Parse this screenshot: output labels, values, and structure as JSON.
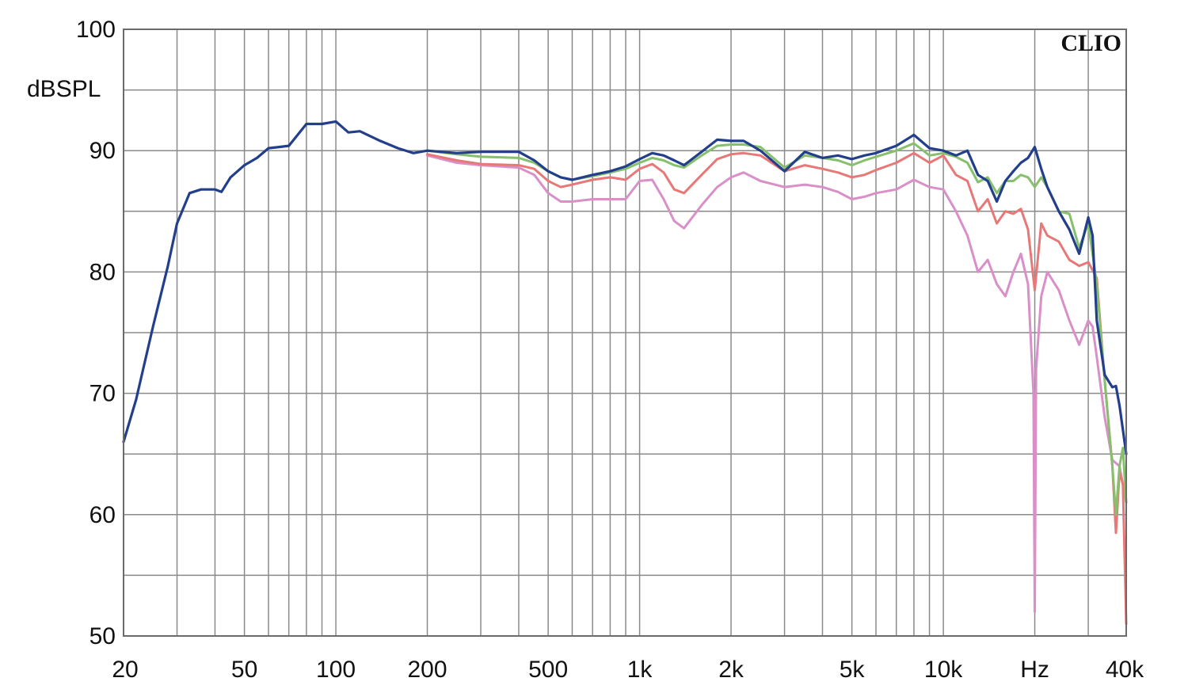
{
  "chart_data": {
    "type": "line",
    "brand": "CLIO",
    "ylabel": "dBSPL",
    "xunit_label": "Hz",
    "xscale": "log",
    "xlim": [
      20,
      40000
    ],
    "ylim": [
      50,
      100
    ],
    "grid": true,
    "y_ticks": [
      {
        "value": 50,
        "label": "50"
      },
      {
        "value": 60,
        "label": "60"
      },
      {
        "value": 70,
        "label": "70"
      },
      {
        "value": 80,
        "label": "80"
      },
      {
        "value": 90,
        "label": "90"
      },
      {
        "value": 100,
        "label": "100"
      }
    ],
    "x_ticks": [
      {
        "value": 20,
        "label": "20"
      },
      {
        "value": 50,
        "label": "50"
      },
      {
        "value": 100,
        "label": "100"
      },
      {
        "value": 200,
        "label": "200"
      },
      {
        "value": 500,
        "label": "500"
      },
      {
        "value": 1000,
        "label": "1k"
      },
      {
        "value": 2000,
        "label": "2k"
      },
      {
        "value": 5000,
        "label": "5k"
      },
      {
        "value": 10000,
        "label": "10k"
      },
      {
        "value": 20000,
        "label": "Hz"
      },
      {
        "value": 40000,
        "label": "40k"
      }
    ],
    "x_minor_grid": [
      30,
      40,
      60,
      70,
      80,
      90,
      300,
      400,
      600,
      700,
      800,
      900,
      3000,
      4000,
      6000,
      7000,
      8000,
      9000,
      30000
    ],
    "series": [
      {
        "color": "#d98fc8",
        "points": [
          [
            200,
            89.6
          ],
          [
            250,
            89.0
          ],
          [
            300,
            88.8
          ],
          [
            400,
            88.6
          ],
          [
            450,
            88.0
          ],
          [
            500,
            86.5
          ],
          [
            550,
            85.8
          ],
          [
            600,
            85.8
          ],
          [
            700,
            86.0
          ],
          [
            800,
            86.0
          ],
          [
            900,
            86.0
          ],
          [
            1000,
            87.5
          ],
          [
            1100,
            87.6
          ],
          [
            1200,
            86.0
          ],
          [
            1300,
            84.2
          ],
          [
            1400,
            83.6
          ],
          [
            1600,
            85.5
          ],
          [
            1800,
            87.0
          ],
          [
            2000,
            87.8
          ],
          [
            2200,
            88.2
          ],
          [
            2500,
            87.5
          ],
          [
            3000,
            87.0
          ],
          [
            3500,
            87.2
          ],
          [
            4000,
            87.0
          ],
          [
            4500,
            86.6
          ],
          [
            5000,
            86.0
          ],
          [
            5500,
            86.2
          ],
          [
            6000,
            86.5
          ],
          [
            7000,
            86.8
          ],
          [
            8000,
            87.6
          ],
          [
            9000,
            87.0
          ],
          [
            10000,
            86.8
          ],
          [
            11000,
            85.0
          ],
          [
            12000,
            83.0
          ],
          [
            13000,
            80.0
          ],
          [
            14000,
            81.0
          ],
          [
            15000,
            79.0
          ],
          [
            16000,
            78.0
          ],
          [
            17000,
            80.0
          ],
          [
            18000,
            81.5
          ],
          [
            19000,
            79.0
          ],
          [
            19800,
            70.0
          ],
          [
            20000,
            52.0
          ],
          [
            20200,
            72.0
          ],
          [
            21000,
            78.0
          ],
          [
            22000,
            80.0
          ],
          [
            24000,
            78.5
          ],
          [
            26000,
            76.0
          ],
          [
            28000,
            74.0
          ],
          [
            30000,
            76.0
          ],
          [
            31000,
            75.5
          ],
          [
            32000,
            73.0
          ],
          [
            34000,
            68.0
          ],
          [
            36000,
            64.5
          ],
          [
            38000,
            64.0
          ],
          [
            40000,
            61.0
          ]
        ]
      },
      {
        "color": "#e87878",
        "points": [
          [
            200,
            89.7
          ],
          [
            250,
            89.2
          ],
          [
            300,
            88.9
          ],
          [
            400,
            88.8
          ],
          [
            450,
            88.5
          ],
          [
            500,
            87.5
          ],
          [
            550,
            87.0
          ],
          [
            600,
            87.2
          ],
          [
            700,
            87.6
          ],
          [
            800,
            87.8
          ],
          [
            900,
            87.6
          ],
          [
            1000,
            88.5
          ],
          [
            1100,
            88.9
          ],
          [
            1200,
            88.2
          ],
          [
            1300,
            86.8
          ],
          [
            1400,
            86.5
          ],
          [
            1600,
            88.0
          ],
          [
            1800,
            89.3
          ],
          [
            2000,
            89.7
          ],
          [
            2200,
            89.8
          ],
          [
            2500,
            89.6
          ],
          [
            3000,
            88.3
          ],
          [
            3500,
            88.8
          ],
          [
            4000,
            88.5
          ],
          [
            4500,
            88.2
          ],
          [
            5000,
            87.8
          ],
          [
            5500,
            88.0
          ],
          [
            6000,
            88.4
          ],
          [
            7000,
            89.0
          ],
          [
            8000,
            89.8
          ],
          [
            9000,
            89.0
          ],
          [
            10000,
            89.6
          ],
          [
            11000,
            88.0
          ],
          [
            12000,
            87.5
          ],
          [
            13000,
            85.0
          ],
          [
            14000,
            86.0
          ],
          [
            15000,
            84.0
          ],
          [
            16000,
            85.0
          ],
          [
            17000,
            84.8
          ],
          [
            18000,
            85.2
          ],
          [
            19000,
            83.5
          ],
          [
            20000,
            78.5
          ],
          [
            21000,
            84.0
          ],
          [
            22000,
            83.0
          ],
          [
            24000,
            82.5
          ],
          [
            26000,
            81.0
          ],
          [
            28000,
            80.5
          ],
          [
            30000,
            80.8
          ],
          [
            32000,
            79.5
          ],
          [
            34000,
            71.0
          ],
          [
            36000,
            64.0
          ],
          [
            37000,
            58.5
          ],
          [
            38000,
            63.5
          ],
          [
            39000,
            62.5
          ],
          [
            40000,
            51.0
          ]
        ]
      },
      {
        "color": "#86c06c",
        "points": [
          [
            200,
            90.0
          ],
          [
            250,
            89.7
          ],
          [
            300,
            89.5
          ],
          [
            400,
            89.4
          ],
          [
            450,
            89.0
          ],
          [
            500,
            88.3
          ],
          [
            550,
            87.8
          ],
          [
            600,
            87.6
          ],
          [
            700,
            87.9
          ],
          [
            800,
            88.2
          ],
          [
            900,
            88.5
          ],
          [
            1000,
            89.0
          ],
          [
            1100,
            89.4
          ],
          [
            1200,
            89.2
          ],
          [
            1300,
            88.8
          ],
          [
            1400,
            88.6
          ],
          [
            1600,
            89.6
          ],
          [
            1800,
            90.4
          ],
          [
            2000,
            90.5
          ],
          [
            2200,
            90.5
          ],
          [
            2500,
            90.3
          ],
          [
            3000,
            88.6
          ],
          [
            3500,
            89.6
          ],
          [
            4000,
            89.4
          ],
          [
            4500,
            89.2
          ],
          [
            5000,
            88.8
          ],
          [
            5500,
            89.2
          ],
          [
            6000,
            89.5
          ],
          [
            7000,
            90.0
          ],
          [
            8000,
            90.6
          ],
          [
            9000,
            89.6
          ],
          [
            10000,
            89.8
          ],
          [
            11000,
            89.5
          ],
          [
            12000,
            89.0
          ],
          [
            13000,
            87.4
          ],
          [
            14000,
            87.8
          ],
          [
            15000,
            86.5
          ],
          [
            16000,
            87.5
          ],
          [
            17000,
            87.5
          ],
          [
            18000,
            88.0
          ],
          [
            19000,
            87.8
          ],
          [
            20000,
            87.0
          ],
          [
            21000,
            87.8
          ],
          [
            22000,
            87.0
          ],
          [
            24000,
            85.0
          ],
          [
            26000,
            84.8
          ],
          [
            28000,
            82.0
          ],
          [
            30000,
            84.0
          ],
          [
            32000,
            79.0
          ],
          [
            34000,
            71.0
          ],
          [
            36000,
            64.0
          ],
          [
            37000,
            60.0
          ],
          [
            38000,
            64.0
          ],
          [
            39000,
            65.5
          ],
          [
            40000,
            61.0
          ]
        ]
      },
      {
        "color": "#233f8c",
        "points": [
          [
            20,
            66.0
          ],
          [
            22,
            69.5
          ],
          [
            25,
            75.5
          ],
          [
            28,
            80.5
          ],
          [
            30,
            84.0
          ],
          [
            33,
            86.5
          ],
          [
            36,
            86.8
          ],
          [
            40,
            86.8
          ],
          [
            42,
            86.6
          ],
          [
            45,
            87.8
          ],
          [
            50,
            88.8
          ],
          [
            55,
            89.4
          ],
          [
            60,
            90.2
          ],
          [
            65,
            90.3
          ],
          [
            70,
            90.4
          ],
          [
            80,
            92.2
          ],
          [
            90,
            92.2
          ],
          [
            100,
            92.4
          ],
          [
            110,
            91.5
          ],
          [
            120,
            91.6
          ],
          [
            140,
            90.8
          ],
          [
            160,
            90.2
          ],
          [
            180,
            89.8
          ],
          [
            200,
            90.0
          ],
          [
            250,
            89.8
          ],
          [
            300,
            89.9
          ],
          [
            350,
            89.9
          ],
          [
            400,
            89.9
          ],
          [
            450,
            89.2
          ],
          [
            500,
            88.3
          ],
          [
            550,
            87.8
          ],
          [
            600,
            87.6
          ],
          [
            700,
            88.0
          ],
          [
            800,
            88.3
          ],
          [
            900,
            88.7
          ],
          [
            1000,
            89.3
          ],
          [
            1100,
            89.8
          ],
          [
            1200,
            89.6
          ],
          [
            1300,
            89.2
          ],
          [
            1400,
            88.8
          ],
          [
            1600,
            89.9
          ],
          [
            1800,
            90.9
          ],
          [
            2000,
            90.8
          ],
          [
            2200,
            90.8
          ],
          [
            2500,
            90.0
          ],
          [
            3000,
            88.3
          ],
          [
            3500,
            89.9
          ],
          [
            4000,
            89.4
          ],
          [
            4500,
            89.6
          ],
          [
            5000,
            89.3
          ],
          [
            5500,
            89.6
          ],
          [
            6000,
            89.8
          ],
          [
            7000,
            90.4
          ],
          [
            8000,
            91.3
          ],
          [
            9000,
            90.2
          ],
          [
            10000,
            90.0
          ],
          [
            11000,
            89.6
          ],
          [
            12000,
            90.0
          ],
          [
            13000,
            88.0
          ],
          [
            14000,
            87.5
          ],
          [
            15000,
            85.8
          ],
          [
            16000,
            87.5
          ],
          [
            17000,
            88.3
          ],
          [
            18000,
            89.0
          ],
          [
            19000,
            89.4
          ],
          [
            20000,
            90.3
          ],
          [
            21000,
            88.5
          ],
          [
            22000,
            87.0
          ],
          [
            24000,
            85.0
          ],
          [
            26000,
            83.5
          ],
          [
            28000,
            81.5
          ],
          [
            30000,
            84.5
          ],
          [
            31000,
            83.0
          ],
          [
            32000,
            76.0
          ],
          [
            34000,
            71.5
          ],
          [
            36000,
            70.5
          ],
          [
            37000,
            70.6
          ],
          [
            38000,
            69.0
          ],
          [
            39000,
            67.0
          ],
          [
            40000,
            65.0
          ]
        ]
      }
    ]
  }
}
